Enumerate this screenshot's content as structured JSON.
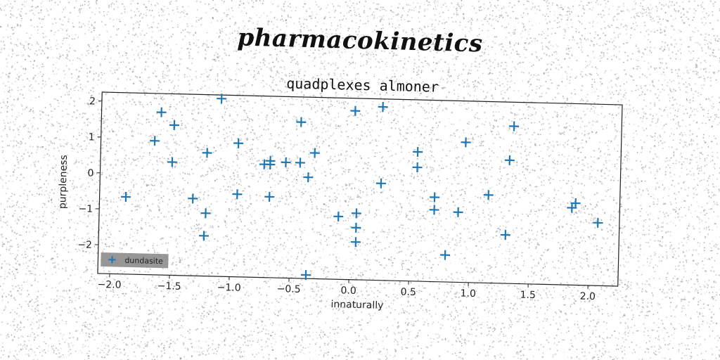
{
  "figure": {
    "supertitle": "pharmacokinetics"
  },
  "chart_data": {
    "type": "scatter",
    "title": "quadplexes almoner",
    "xlabel": "innaturally",
    "ylabel": "purpleness",
    "xlim": [
      -2.1,
      2.25
    ],
    "ylim": [
      -2.8,
      2.25
    ],
    "xticks": [
      -2.0,
      -1.5,
      -1.0,
      -0.5,
      0.0,
      0.5,
      1.0,
      1.5,
      2.0
    ],
    "xtick_labels": [
      "−2.0",
      "−1.5",
      "−1.0",
      "−0.5",
      "0.0",
      "0.5",
      "1.0",
      "1.5",
      "2.0"
    ],
    "yticks": [
      2,
      1,
      0,
      -1,
      -2
    ],
    "ytick_labels": [
      "2",
      "1",
      "0",
      "−1",
      "−2"
    ],
    "grid": false,
    "legend_position": "lower-left",
    "marker": "plus",
    "series": [
      {
        "name": "dundasite",
        "color": "#1f77b4",
        "points": [
          [
            -1.88,
            -0.65
          ],
          [
            -1.6,
            1.73
          ],
          [
            -1.65,
            0.93
          ],
          [
            -1.49,
            1.38
          ],
          [
            -1.5,
            0.35
          ],
          [
            -1.32,
            -0.65
          ],
          [
            -1.21,
            -1.05
          ],
          [
            -1.21,
            0.63
          ],
          [
            -1.22,
            -1.68
          ],
          [
            -1.1,
            2.15
          ],
          [
            -0.95,
            0.92
          ],
          [
            -0.95,
            -0.5
          ],
          [
            -0.73,
            0.35
          ],
          [
            -0.68,
            0.45
          ],
          [
            -0.68,
            0.35
          ],
          [
            -0.68,
            -0.55
          ],
          [
            -0.55,
            0.42
          ],
          [
            -0.43,
            1.55
          ],
          [
            -0.43,
            0.42
          ],
          [
            -0.36,
            0.02
          ],
          [
            -0.31,
            0.7
          ],
          [
            -0.36,
            -2.7
          ],
          [
            -0.1,
            -1.05
          ],
          [
            0.02,
            1.9
          ],
          [
            0.05,
            -0.95
          ],
          [
            0.05,
            -1.35
          ],
          [
            0.05,
            -1.75
          ],
          [
            0.25,
            2.03
          ],
          [
            0.25,
            -0.1
          ],
          [
            0.55,
            0.8
          ],
          [
            0.55,
            0.37
          ],
          [
            0.7,
            -0.45
          ],
          [
            0.7,
            -0.8
          ],
          [
            0.8,
            -2.05
          ],
          [
            0.9,
            -0.85
          ],
          [
            0.95,
            1.1
          ],
          [
            1.15,
            -0.35
          ],
          [
            1.3,
            -1.45
          ],
          [
            1.32,
            0.63
          ],
          [
            1.35,
            1.58
          ],
          [
            1.85,
            -0.65
          ],
          [
            1.88,
            -0.52
          ],
          [
            2.07,
            -1.05
          ]
        ]
      }
    ]
  }
}
